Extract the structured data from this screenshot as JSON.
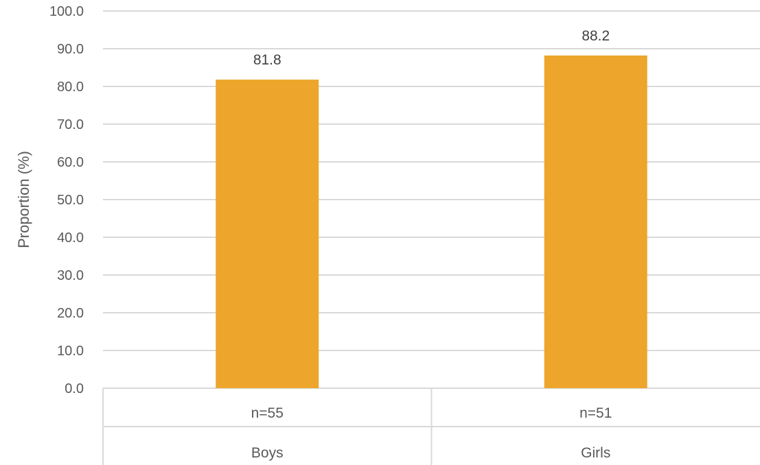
{
  "chart_data": {
    "type": "bar",
    "title": "",
    "xlabel": "",
    "ylabel": "Proportion (%)",
    "ylim": [
      0,
      100
    ],
    "ytick_step": 10,
    "ytick_labels": [
      "0.0",
      "10.0",
      "20.0",
      "30.0",
      "40.0",
      "50.0",
      "60.0",
      "70.0",
      "80.0",
      "90.0",
      "100.0"
    ],
    "categories": [
      "Boys",
      "Girls"
    ],
    "sample_sizes": [
      "n=55",
      "n=51"
    ],
    "values": [
      81.8,
      88.2
    ],
    "data_labels": [
      "81.8",
      "88.2"
    ],
    "grid": true,
    "legend": "none",
    "bar_color": "#EDA62B",
    "gridline_color": "#D9D9D9"
  }
}
